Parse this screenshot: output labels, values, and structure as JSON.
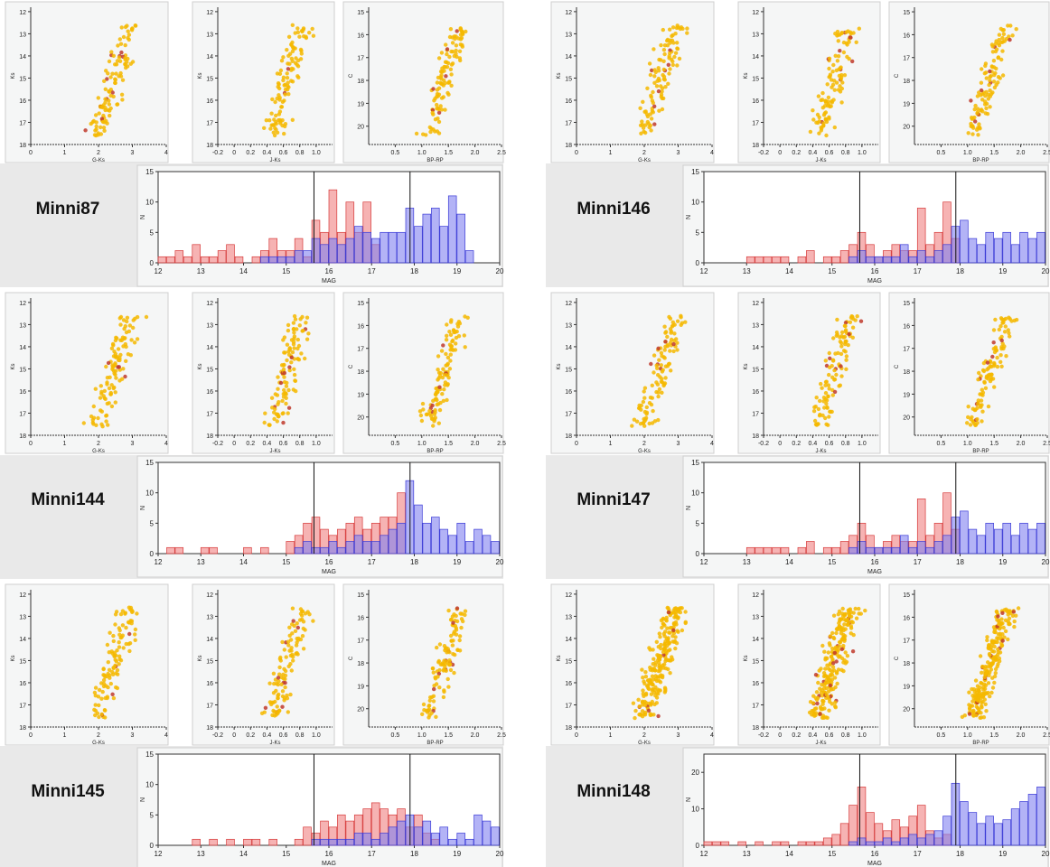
{
  "clusters": [
    {
      "name": "Minni87",
      "column": "left",
      "row": 0
    },
    {
      "name": "Minni144",
      "column": "left",
      "row": 1
    },
    {
      "name": "Minni145",
      "column": "left",
      "row": 2
    },
    {
      "name": "Minni146",
      "column": "right",
      "row": 0
    },
    {
      "name": "Minni147",
      "column": "right",
      "row": 1
    },
    {
      "name": "Minni148",
      "column": "right",
      "row": 2
    }
  ],
  "cmd_panels": [
    {
      "xlabel": "G-Ks",
      "ylabel": "Ks",
      "xlim": [
        0,
        4
      ],
      "ylim": [
        18,
        11.8
      ],
      "xticks": [
        "0",
        "1",
        "2",
        "3",
        "4"
      ],
      "yticks": [
        "12",
        "13",
        "14",
        "15",
        "16",
        "17",
        "18"
      ]
    },
    {
      "xlabel": "J-Ks",
      "ylabel": "Ks",
      "xlim": [
        -0.2,
        1.2
      ],
      "ylim": [
        18,
        11.8
      ],
      "xticks": [
        "-0.2",
        "0",
        "0.2",
        "0.4",
        "0.6",
        "0.8",
        "1.0"
      ],
      "yticks": [
        "12",
        "13",
        "14",
        "15",
        "16",
        "17",
        "18"
      ]
    },
    {
      "xlabel": "BP-RP",
      "ylabel": "C",
      "xlim": [
        0,
        2.5
      ],
      "ylim": [
        20.8,
        14.8
      ],
      "xticks": [
        "0.5",
        "1.0",
        "1.5",
        "2.0",
        "2.5"
      ],
      "yticks": [
        "15",
        "16",
        "17",
        "18",
        "19",
        "20"
      ]
    }
  ],
  "histogram": {
    "xlabel": "MAG",
    "ylabel": "N",
    "xlim": [
      12,
      20
    ],
    "xticks": [
      "12",
      "13",
      "14",
      "15",
      "16",
      "17",
      "18",
      "19",
      "20"
    ],
    "vlines": [
      15.65,
      17.9
    ]
  },
  "colors": {
    "scatter": "#f5b800",
    "scatter_dense": "#c0392b",
    "red_bars": "#f08080",
    "blue_bars": "#8080f0",
    "panel_bg": "#f5f6f6",
    "row_bg": "#e9e9e9"
  },
  "chart_data": [
    {
      "type": "bar",
      "title": "Minni87",
      "xlabel": "MAG",
      "ylabel": "N",
      "ylim": [
        0,
        15
      ],
      "x": [
        12.1,
        12.3,
        12.5,
        12.7,
        12.9,
        13.1,
        13.3,
        13.5,
        13.7,
        13.9,
        14.1,
        14.3,
        14.5,
        14.7,
        14.9,
        15.1,
        15.3,
        15.5,
        15.7,
        15.9,
        16.1,
        16.3,
        16.5,
        16.7,
        16.9,
        17.1,
        17.3,
        17.5,
        17.7,
        17.9,
        18.1,
        18.3,
        18.5,
        18.7,
        18.9,
        19.1,
        19.3
      ],
      "series": [
        {
          "name": "",
          "values": [
            1,
            1,
            2,
            1,
            3,
            1,
            1,
            2,
            3,
            1,
            0,
            1,
            2,
            4,
            2,
            2,
            4,
            1,
            7,
            5,
            12,
            5,
            10,
            5,
            10,
            3,
            0,
            0,
            0,
            0,
            0,
            0,
            0,
            0,
            0,
            0,
            0
          ]
        },
        {
          "name": "",
          "values": [
            0,
            0,
            0,
            0,
            0,
            0,
            0,
            0,
            0,
            0,
            0,
            0,
            1,
            1,
            1,
            1,
            2,
            2,
            4,
            3,
            4,
            3,
            4,
            6,
            5,
            4,
            5,
            5,
            5,
            9,
            6,
            8,
            9,
            6,
            11,
            8,
            2
          ]
        }
      ]
    },
    {
      "type": "bar",
      "title": "Minni144",
      "xlabel": "MAG",
      "ylabel": "N",
      "ylim": [
        0,
        15
      ],
      "x": [
        12.1,
        12.3,
        12.5,
        12.7,
        12.9,
        13.1,
        13.3,
        13.5,
        13.7,
        13.9,
        14.1,
        14.3,
        14.5,
        14.7,
        14.9,
        15.1,
        15.3,
        15.5,
        15.7,
        15.9,
        16.1,
        16.3,
        16.5,
        16.7,
        16.9,
        17.1,
        17.3,
        17.5,
        17.7,
        17.9,
        18.1,
        18.3,
        18.5,
        18.7,
        18.9,
        19.1,
        19.3,
        19.5,
        19.7,
        19.9
      ],
      "series": [
        {
          "name": "",
          "values": [
            0,
            1,
            1,
            0,
            0,
            1,
            1,
            0,
            0,
            0,
            1,
            0,
            1,
            0,
            0,
            2,
            3,
            5,
            6,
            4,
            3,
            4,
            5,
            6,
            4,
            5,
            6,
            6,
            10,
            0,
            0,
            0,
            0,
            0,
            0,
            0,
            0,
            0,
            0,
            0
          ]
        },
        {
          "name": "",
          "values": [
            0,
            0,
            0,
            0,
            0,
            0,
            0,
            0,
            0,
            0,
            0,
            0,
            0,
            0,
            0,
            0,
            1,
            2,
            1,
            1,
            2,
            1,
            2,
            3,
            2,
            2,
            3,
            4,
            5,
            12,
            8,
            5,
            6,
            4,
            3,
            5,
            2,
            4,
            3,
            2
          ]
        }
      ]
    },
    {
      "type": "bar",
      "title": "Minni145",
      "xlabel": "MAG",
      "ylabel": "N",
      "ylim": [
        0,
        15
      ],
      "x": [
        12.1,
        12.3,
        12.5,
        12.7,
        12.9,
        13.1,
        13.3,
        13.5,
        13.7,
        13.9,
        14.1,
        14.3,
        14.5,
        14.7,
        14.9,
        15.1,
        15.3,
        15.5,
        15.7,
        15.9,
        16.1,
        16.3,
        16.5,
        16.7,
        16.9,
        17.1,
        17.3,
        17.5,
        17.7,
        17.9,
        18.1,
        18.3,
        18.5,
        18.7,
        18.9,
        19.1,
        19.3,
        19.5,
        19.7,
        19.9
      ],
      "series": [
        {
          "name": "",
          "values": [
            0,
            0,
            0,
            0,
            1,
            0,
            1,
            0,
            1,
            0,
            1,
            1,
            0,
            1,
            0,
            0,
            1,
            3,
            2,
            4,
            3,
            5,
            4,
            5,
            6,
            7,
            6,
            5,
            6,
            3,
            5,
            2,
            1,
            0,
            0,
            0,
            0,
            0,
            0,
            0
          ]
        },
        {
          "name": "",
          "values": [
            0,
            0,
            0,
            0,
            0,
            0,
            0,
            0,
            0,
            0,
            0,
            0,
            0,
            0,
            0,
            0,
            0,
            0,
            1,
            1,
            1,
            1,
            1,
            2,
            2,
            1,
            2,
            3,
            4,
            5,
            3,
            4,
            2,
            3,
            1,
            2,
            1,
            5,
            4,
            3
          ]
        }
      ]
    },
    {
      "type": "bar",
      "title": "Minni146",
      "xlabel": "MAG",
      "ylabel": "N",
      "ylim": [
        0,
        15
      ],
      "x": [
        12.1,
        12.3,
        12.5,
        12.7,
        12.9,
        13.1,
        13.3,
        13.5,
        13.7,
        13.9,
        14.1,
        14.3,
        14.5,
        14.7,
        14.9,
        15.1,
        15.3,
        15.5,
        15.7,
        15.9,
        16.1,
        16.3,
        16.5,
        16.7,
        16.9,
        17.1,
        17.3,
        17.5,
        17.7,
        17.9,
        18.1,
        18.3,
        18.5,
        18.7,
        18.9,
        19.1,
        19.3,
        19.5,
        19.7,
        19.9
      ],
      "series": [
        {
          "name": "",
          "values": [
            0,
            0,
            0,
            0,
            0,
            1,
            1,
            1,
            1,
            1,
            0,
            1,
            2,
            0,
            1,
            1,
            2,
            3,
            5,
            3,
            1,
            2,
            3,
            2,
            2,
            9,
            3,
            5,
            10,
            4,
            0,
            0,
            0,
            0,
            0,
            0,
            0,
            0,
            0,
            0
          ]
        },
        {
          "name": "",
          "values": [
            0,
            0,
            0,
            0,
            0,
            0,
            0,
            0,
            0,
            0,
            0,
            0,
            0,
            0,
            0,
            0,
            0,
            1,
            2,
            1,
            1,
            1,
            1,
            3,
            1,
            2,
            1,
            2,
            3,
            6,
            7,
            4,
            3,
            5,
            4,
            5,
            3,
            5,
            4,
            5
          ]
        }
      ]
    },
    {
      "type": "bar",
      "title": "Minni147",
      "xlabel": "MAG",
      "ylabel": "N",
      "ylim": [
        0,
        15
      ],
      "x": [
        12.1,
        12.3,
        12.5,
        12.7,
        12.9,
        13.1,
        13.3,
        13.5,
        13.7,
        13.9,
        14.1,
        14.3,
        14.5,
        14.7,
        14.9,
        15.1,
        15.3,
        15.5,
        15.7,
        15.9,
        16.1,
        16.3,
        16.5,
        16.7,
        16.9,
        17.1,
        17.3,
        17.5,
        17.7,
        17.9,
        18.1,
        18.3,
        18.5,
        18.7,
        18.9,
        19.1,
        19.3,
        19.5,
        19.7,
        19.9
      ],
      "series": [
        {
          "name": "",
          "values": [
            0,
            0,
            0,
            0,
            0,
            1,
            1,
            1,
            1,
            1,
            0,
            1,
            2,
            0,
            1,
            1,
            2,
            3,
            5,
            3,
            1,
            2,
            3,
            2,
            2,
            9,
            3,
            5,
            10,
            4,
            0,
            0,
            0,
            0,
            0,
            0,
            0,
            0,
            0,
            0
          ]
        },
        {
          "name": "",
          "values": [
            0,
            0,
            0,
            0,
            0,
            0,
            0,
            0,
            0,
            0,
            0,
            0,
            0,
            0,
            0,
            0,
            0,
            1,
            2,
            1,
            1,
            1,
            1,
            3,
            1,
            2,
            1,
            2,
            3,
            6,
            7,
            4,
            3,
            5,
            4,
            5,
            3,
            5,
            4,
            5
          ]
        }
      ]
    },
    {
      "type": "bar",
      "title": "Minni148",
      "xlabel": "MAG",
      "ylabel": "N",
      "ylim": [
        0,
        25
      ],
      "x": [
        12.1,
        12.3,
        12.5,
        12.7,
        12.9,
        13.1,
        13.3,
        13.5,
        13.7,
        13.9,
        14.1,
        14.3,
        14.5,
        14.7,
        14.9,
        15.1,
        15.3,
        15.5,
        15.7,
        15.9,
        16.1,
        16.3,
        16.5,
        16.7,
        16.9,
        17.1,
        17.3,
        17.5,
        17.7,
        17.9,
        18.1,
        18.3,
        18.5,
        18.7,
        18.9,
        19.1,
        19.3,
        19.5,
        19.7,
        19.9
      ],
      "series": [
        {
          "name": "",
          "values": [
            1,
            1,
            1,
            0,
            1,
            0,
            1,
            0,
            1,
            1,
            0,
            1,
            1,
            1,
            2,
            3,
            6,
            11,
            16,
            9,
            6,
            4,
            7,
            5,
            8,
            11,
            4,
            2,
            3,
            0,
            0,
            0,
            0,
            0,
            0,
            0,
            0,
            0,
            0,
            0
          ]
        },
        {
          "name": "",
          "values": [
            0,
            0,
            0,
            0,
            0,
            0,
            0,
            0,
            0,
            0,
            0,
            0,
            0,
            0,
            0,
            0,
            0,
            1,
            2,
            1,
            1,
            2,
            1,
            2,
            3,
            2,
            3,
            4,
            8,
            17,
            12,
            9,
            6,
            8,
            6,
            7,
            10,
            12,
            14,
            16
          ]
        }
      ]
    }
  ]
}
